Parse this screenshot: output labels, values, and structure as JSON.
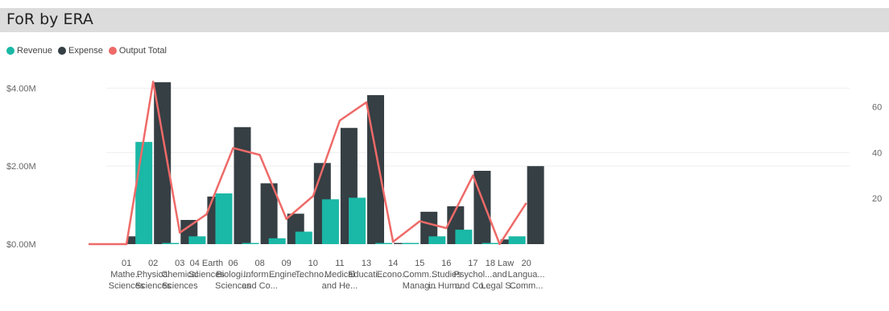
{
  "title": "FoR by ERA",
  "colors": {
    "revenue": "#1ab8a6",
    "expense": "#353f44",
    "output": "#ee6a68"
  },
  "chart_data": {
    "type": "bar",
    "categories": [
      [
        "",
        ""
      ],
      [
        "01",
        "Mathe...",
        "Sciences"
      ],
      [
        "02",
        "Physical",
        "Sciences"
      ],
      [
        "03",
        "Chemical",
        "Sciences"
      ],
      [
        "04 Earth",
        "Sciences"
      ],
      [
        "06",
        "Biologi...",
        "Sciences"
      ],
      [
        "08",
        "Inform...",
        "and Co..."
      ],
      [
        "09",
        "Engine..."
      ],
      [
        "10",
        "Techno..."
      ],
      [
        "11",
        "Medical",
        "and He..."
      ],
      [
        "13",
        "Educati..."
      ],
      [
        "14",
        "Econo..."
      ],
      [
        "15",
        "Comm...",
        "Manag..."
      ],
      [
        "16",
        "Studies",
        "in Hum..."
      ],
      [
        "17",
        "Psychol...",
        "and Co..."
      ],
      [
        "18 Law",
        "and",
        "Legal S..."
      ],
      [
        "20",
        "Langua...",
        "Comm..."
      ]
    ],
    "series": [
      {
        "name": "Revenue",
        "axis": "left",
        "values": [
          null,
          0.0,
          2.62,
          0.03,
          0.2,
          1.3,
          0.03,
          0.15,
          0.32,
          1.15,
          1.19,
          0.03,
          0.03,
          0.2,
          0.37,
          0.03,
          0.2
        ]
      },
      {
        "name": "Expense",
        "axis": "left",
        "values": [
          null,
          0.2,
          4.15,
          0.62,
          1.22,
          3.0,
          1.56,
          0.78,
          2.08,
          2.98,
          3.82,
          0.03,
          0.83,
          0.97,
          1.88,
          0.12,
          2.0
        ]
      },
      {
        "name": "Output Total",
        "axis": "right",
        "type": "line",
        "values": [
          0,
          0,
          71,
          5,
          13,
          42,
          39,
          11,
          21,
          54,
          62,
          1,
          10,
          7,
          30,
          0,
          18
        ]
      }
    ],
    "y_left": {
      "ticks": [
        "$4.00M",
        "$2.00M",
        "$0.00M"
      ],
      "tick_values": [
        4,
        2,
        0
      ],
      "range": [
        0,
        4.4
      ]
    },
    "y_right": {
      "ticks": [
        "60",
        "40",
        "20"
      ],
      "tick_values": [
        60,
        40,
        20
      ],
      "range": [
        0,
        75
      ]
    },
    "legend": "top-left",
    "grid": true
  }
}
